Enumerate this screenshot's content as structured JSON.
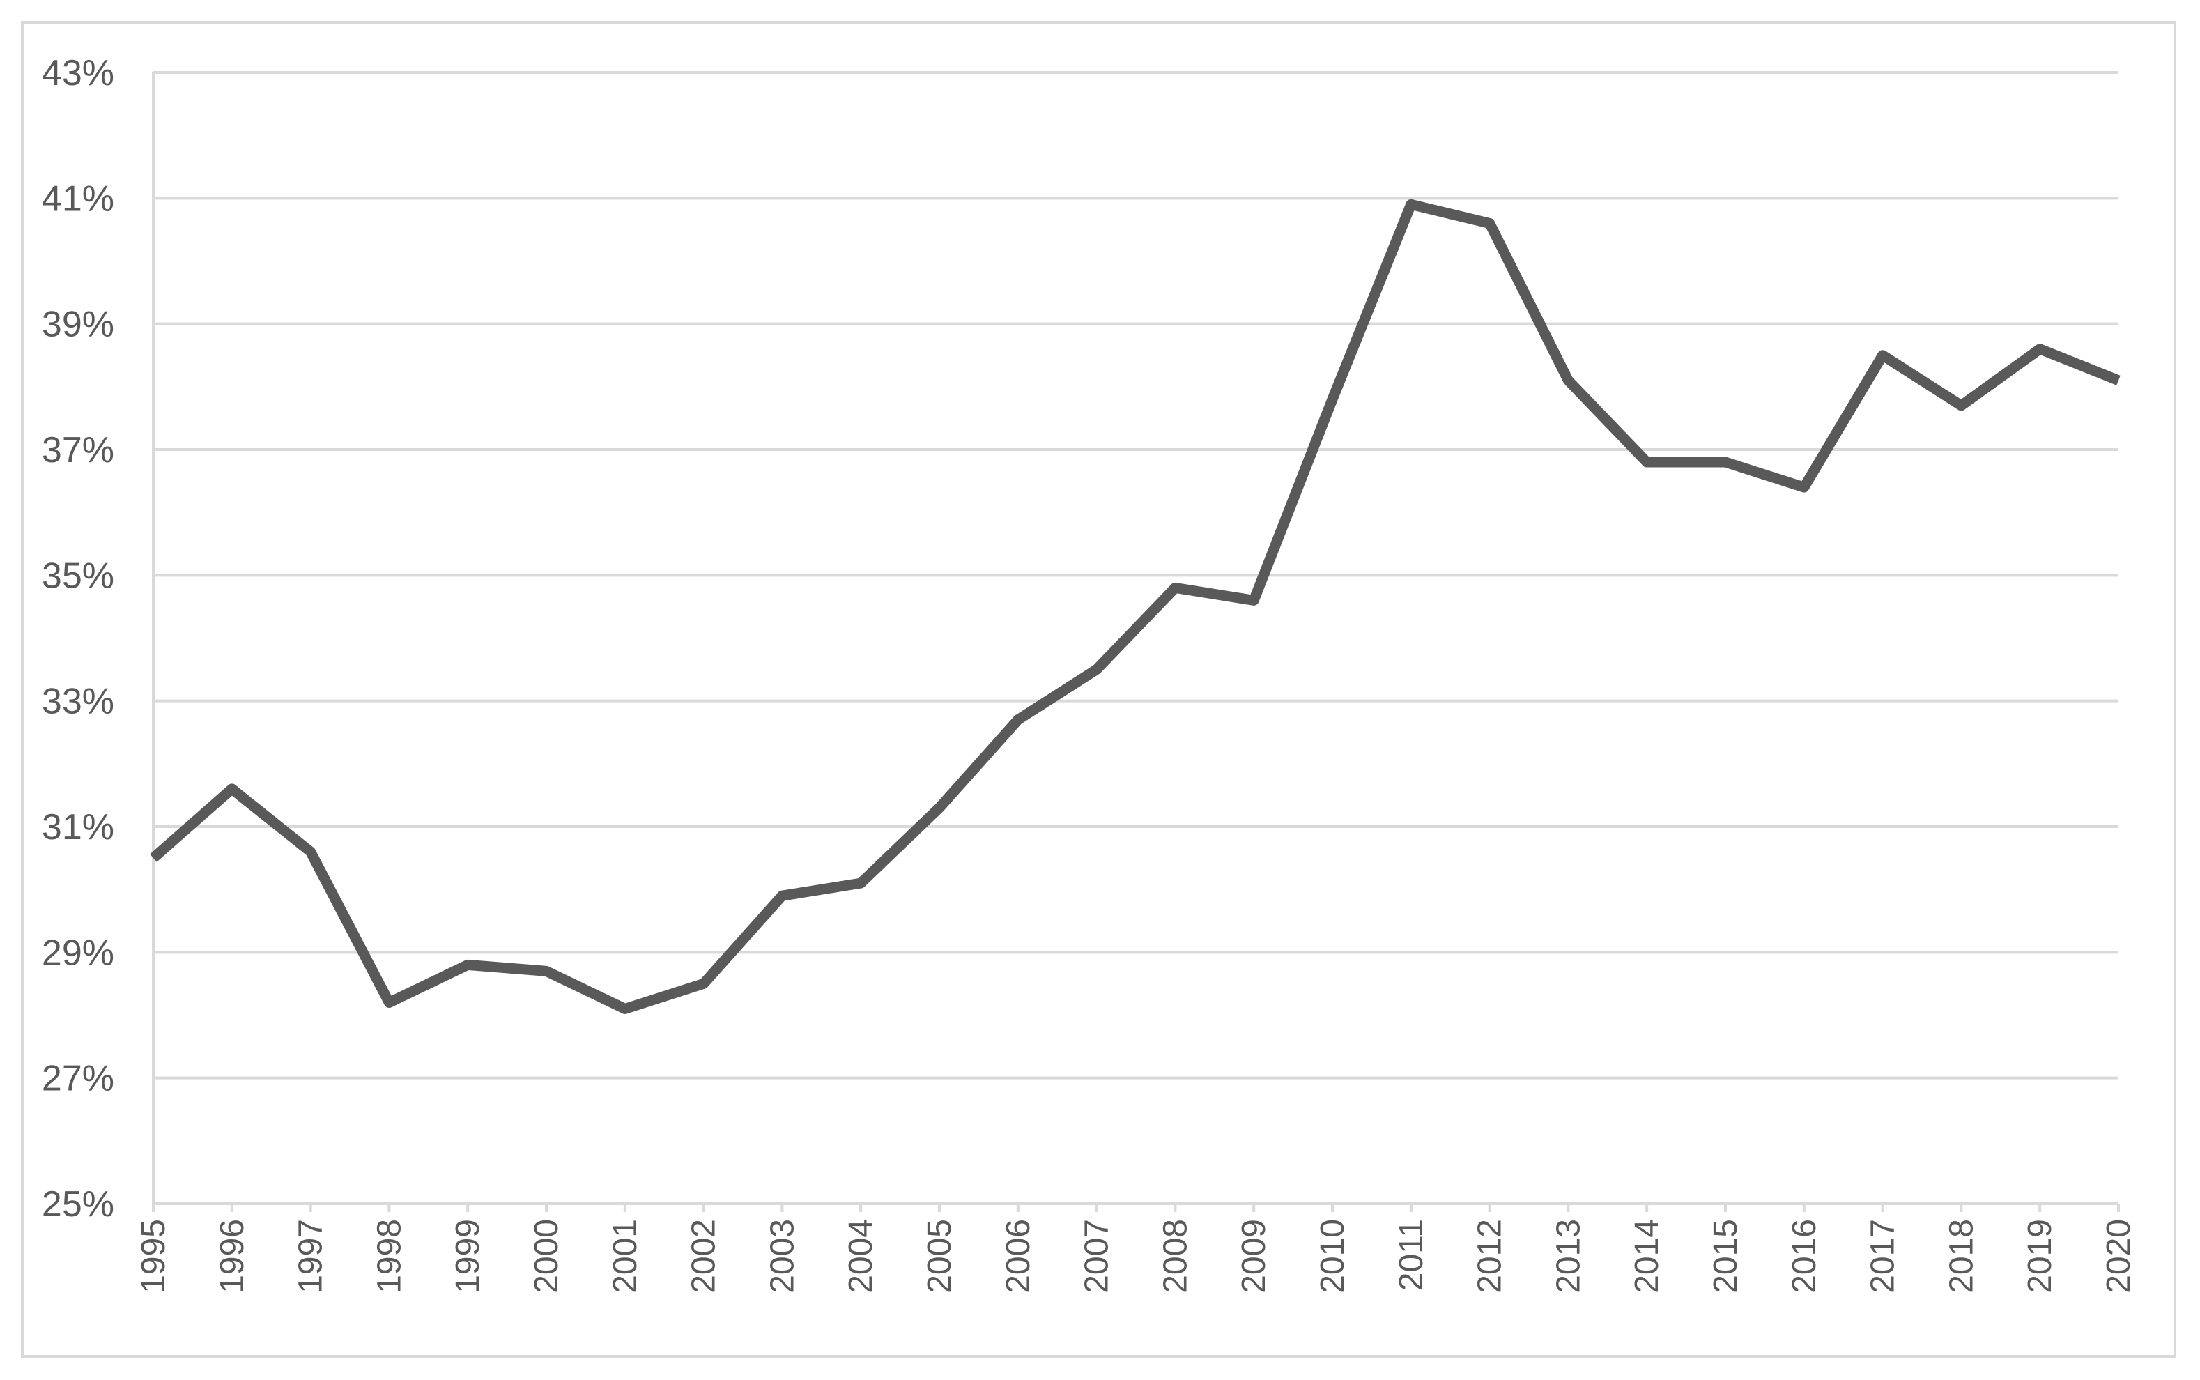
{
  "chart_data": {
    "type": "line",
    "title": "",
    "xlabel": "",
    "ylabel": "",
    "ylim": [
      25,
      43
    ],
    "y_tick_step": 2,
    "y_tick_labels": [
      "25%",
      "27%",
      "29%",
      "31%",
      "33%",
      "35%",
      "37%",
      "39%",
      "41%",
      "43%"
    ],
    "categories": [
      "1995",
      "1996",
      "1997",
      "1998",
      "1999",
      "2000",
      "2001",
      "2002",
      "2003",
      "2004",
      "2005",
      "2006",
      "2007",
      "2008",
      "2009",
      "2010",
      "2011",
      "2012",
      "2013",
      "2014",
      "2015",
      "2016",
      "2017",
      "2018",
      "2019",
      "2020"
    ],
    "series": [
      {
        "values": [
          30.5,
          31.6,
          30.6,
          28.2,
          28.8,
          28.7,
          28.1,
          28.5,
          29.9,
          30.1,
          31.3,
          32.7,
          33.5,
          34.8,
          34.6,
          37.8,
          40.9,
          40.6,
          38.1,
          36.8,
          36.8,
          36.4,
          38.5,
          37.7,
          38.6,
          38.1
        ],
        "color": "#595959"
      }
    ],
    "grid": true,
    "gridline_color": "#d9d9d9",
    "legend": "none"
  }
}
